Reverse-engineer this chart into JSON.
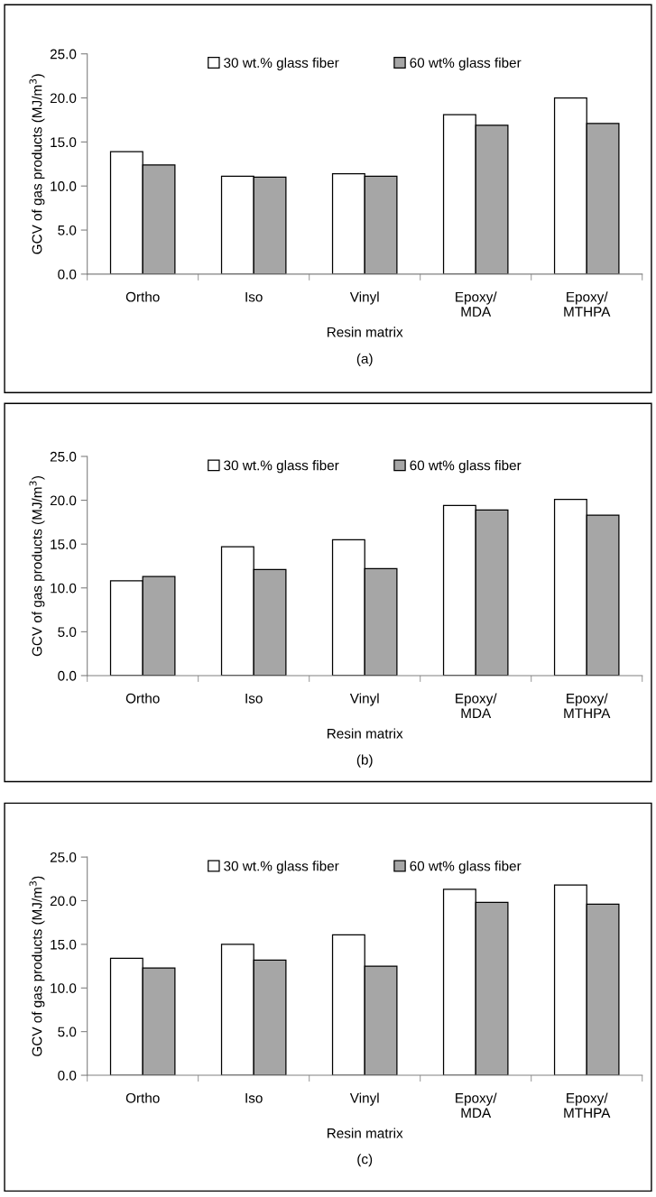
{
  "chart_data": [
    {
      "type": "bar",
      "title": "(a)",
      "xlabel": "Resin matrix",
      "ylabel": "GCV of gas products (MJ/m$^{3}$)",
      "categories": [
        "Ortho",
        "Iso",
        "Vinyl",
        "Epoxy/\nMDA",
        "Epoxy/\nMTHPA"
      ],
      "ylim": [
        0,
        25
      ],
      "yticks": [
        {
          "value": 0,
          "label": "0.0"
        },
        {
          "value": 5,
          "label": "5.0"
        },
        {
          "value": 10,
          "label": "10.0"
        },
        {
          "value": 15,
          "label": "15.0"
        },
        {
          "value": 20,
          "label": "20.0"
        },
        {
          "value": 25,
          "label": "25.0"
        }
      ],
      "legend": "top",
      "grid": false,
      "series": [
        {
          "name": "30 wt.% glass fiber",
          "color": "#ffffff",
          "values": [
            13.9,
            11.1,
            11.4,
            18.1,
            20.0
          ]
        },
        {
          "name": "60 wt% glass fiber",
          "color": "#a6a6a6",
          "values": [
            12.4,
            11.0,
            11.1,
            16.9,
            17.1
          ]
        }
      ]
    },
    {
      "type": "bar",
      "title": "(b)",
      "xlabel": "Resin matrix",
      "ylabel": "GCV of gas products (MJ/m$^{3}$)",
      "categories": [
        "Ortho",
        "Iso",
        "Vinyl",
        "Epoxy/\nMDA",
        "Epoxy/\nMTHPA"
      ],
      "ylim": [
        0,
        25
      ],
      "yticks": [
        {
          "value": 0,
          "label": "0.0"
        },
        {
          "value": 5,
          "label": "5.0"
        },
        {
          "value": 10,
          "label": "10.0"
        },
        {
          "value": 15,
          "label": "15.0"
        },
        {
          "value": 20,
          "label": "20.0"
        },
        {
          "value": 25,
          "label": "25.0"
        }
      ],
      "legend": "top",
      "grid": false,
      "series": [
        {
          "name": "30 wt.% glass fiber",
          "color": "#ffffff",
          "values": [
            10.8,
            14.7,
            15.5,
            19.4,
            20.1
          ]
        },
        {
          "name": "60 wt% glass fiber",
          "color": "#a6a6a6",
          "values": [
            11.3,
            12.1,
            12.2,
            18.9,
            18.3
          ]
        }
      ]
    },
    {
      "type": "bar",
      "title": "(c)",
      "xlabel": "Resin matrix",
      "ylabel": "GCV of gas products (MJ/m$^{3}$)",
      "categories": [
        "Ortho",
        "Iso",
        "Vinyl",
        "Epoxy/\nMDA",
        "Epoxy/\nMTHPA"
      ],
      "ylim": [
        0,
        25
      ],
      "yticks": [
        {
          "value": 0,
          "label": "0.0"
        },
        {
          "value": 5,
          "label": "5.0"
        },
        {
          "value": 10,
          "label": "10.0"
        },
        {
          "value": 15,
          "label": "15.0"
        },
        {
          "value": 20,
          "label": "20.0"
        },
        {
          "value": 25,
          "label": "25.0"
        }
      ],
      "legend": "top",
      "grid": false,
      "series": [
        {
          "name": "30 wt.% glass fiber",
          "color": "#ffffff",
          "values": [
            13.4,
            15.0,
            16.1,
            21.3,
            21.8
          ]
        },
        {
          "name": "60 wt% glass fiber",
          "color": "#a6a6a6",
          "values": [
            12.3,
            13.2,
            12.5,
            19.8,
            19.6
          ]
        }
      ]
    }
  ]
}
